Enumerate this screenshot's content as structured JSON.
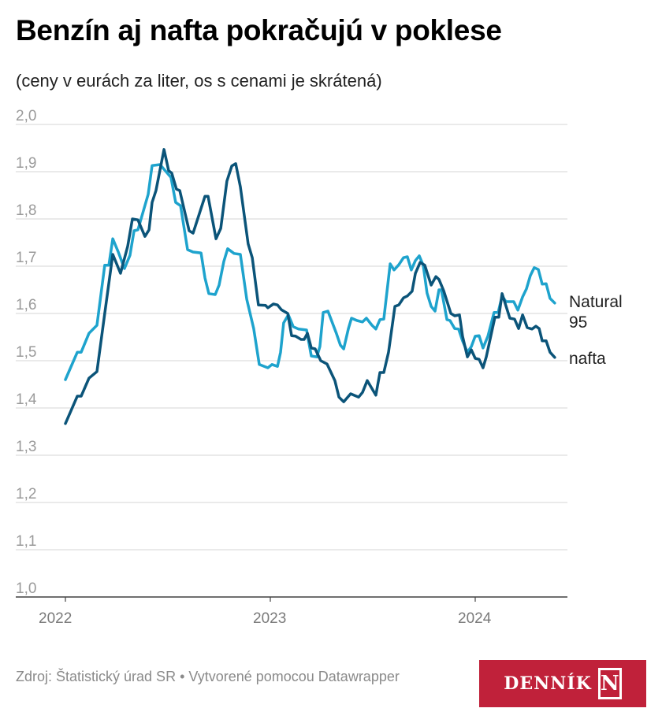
{
  "title": "Benzín aj nafta pokračujú v poklese",
  "subtitle": "(ceny v eurách za liter, os s cenami je skrátená)",
  "footer": {
    "source": "Zdroj: Štatistický úrad SR • Vytvorené pomocou Datawrapper",
    "logo_text": "DENNÍK",
    "logo_mark": "N"
  },
  "colors": {
    "natural95": "#1ea3cd",
    "nafta": "#0b5479",
    "logo": "#c0213a",
    "grid": "#e3e3e3"
  },
  "chart_data": {
    "type": "line",
    "xlabel": "",
    "ylabel": "",
    "ylim": [
      1.0,
      2.0
    ],
    "xlim": [
      2022.0,
      2024.39
    ],
    "y_ticks": [
      "1,0",
      "1,1",
      "1,2",
      "1,3",
      "1,4",
      "1,5",
      "1,6",
      "1,7",
      "1,8",
      "1,9",
      "2,0"
    ],
    "x_ticks": [
      "2022",
      "2023",
      "2024"
    ],
    "grid": true,
    "legend": "right",
    "series": [
      {
        "name": "Natural 95",
        "label_lines": [
          "Natural",
          "95"
        ],
        "color": "#1ea3cd",
        "x": [
          2022.0,
          2022.058,
          2022.077,
          2022.115,
          2022.154,
          2022.192,
          2022.212,
          2022.231,
          2022.258,
          2022.288,
          2022.315,
          2022.335,
          2022.354,
          2022.404,
          2022.423,
          2022.462,
          2022.515,
          2022.538,
          2022.562,
          2022.596,
          2022.623,
          2022.662,
          2022.681,
          2022.7,
          2022.731,
          2022.75,
          2022.773,
          2022.792,
          2022.823,
          2022.854,
          2022.885,
          2022.919,
          2022.946,
          2022.988,
          2023.008,
          2023.035,
          2023.05,
          2023.065,
          2023.088,
          2023.112,
          2023.138,
          2023.177,
          2023.2,
          2023.227,
          2023.242,
          2023.258,
          2023.281,
          2023.323,
          2023.342,
          2023.358,
          2023.381,
          2023.396,
          2023.423,
          2023.45,
          2023.469,
          2023.496,
          2023.515,
          2023.535,
          2023.554,
          2023.585,
          2023.604,
          2023.627,
          2023.65,
          2023.669,
          2023.688,
          2023.708,
          2023.727,
          2023.746,
          2023.765,
          2023.785,
          2023.804,
          2023.823,
          2023.835,
          2023.862,
          2023.877,
          2023.9,
          2023.919,
          2023.938,
          2023.962,
          2023.981,
          2024.0,
          2024.019,
          2024.038,
          2024.062,
          2024.092,
          2024.112,
          2024.131,
          2024.15,
          2024.188,
          2024.208,
          2024.231,
          2024.25,
          2024.269,
          2024.288,
          2024.308,
          2024.327,
          2024.346,
          2024.365,
          2024.388
        ],
        "y": [
          1.46,
          1.518,
          1.518,
          1.558,
          1.575,
          1.702,
          1.702,
          1.758,
          1.73,
          1.695,
          1.723,
          1.775,
          1.777,
          1.852,
          1.913,
          1.915,
          1.888,
          1.835,
          1.828,
          1.735,
          1.73,
          1.728,
          1.675,
          1.642,
          1.64,
          1.66,
          1.71,
          1.737,
          1.727,
          1.725,
          1.63,
          1.568,
          1.492,
          1.485,
          1.492,
          1.488,
          1.518,
          1.58,
          1.597,
          1.572,
          1.567,
          1.565,
          1.51,
          1.508,
          1.53,
          1.602,
          1.605,
          1.557,
          1.533,
          1.525,
          1.568,
          1.59,
          1.585,
          1.582,
          1.59,
          1.575,
          1.567,
          1.587,
          1.588,
          1.705,
          1.692,
          1.703,
          1.718,
          1.72,
          1.692,
          1.712,
          1.722,
          1.702,
          1.643,
          1.615,
          1.605,
          1.65,
          1.65,
          1.587,
          1.585,
          1.568,
          1.567,
          1.542,
          1.518,
          1.53,
          1.552,
          1.553,
          1.527,
          1.552,
          1.602,
          1.602,
          1.637,
          1.625,
          1.625,
          1.607,
          1.635,
          1.652,
          1.68,
          1.697,
          1.693,
          1.662,
          1.663,
          1.632,
          1.622
        ]
      },
      {
        "name": "nafta",
        "label_lines": [
          "nafta"
        ],
        "color": "#0b5479",
        "x": [
          2022.0,
          2022.058,
          2022.077,
          2022.115,
          2022.154,
          2022.192,
          2022.231,
          2022.269,
          2022.304,
          2022.327,
          2022.354,
          2022.388,
          2022.408,
          2022.423,
          2022.442,
          2022.481,
          2022.504,
          2022.519,
          2022.542,
          2022.558,
          2022.604,
          2022.623,
          2022.681,
          2022.696,
          2022.735,
          2022.758,
          2022.788,
          2022.812,
          2022.831,
          2022.854,
          2022.892,
          2022.912,
          2022.942,
          2022.977,
          2022.988,
          2023.015,
          2023.035,
          2023.054,
          2023.085,
          2023.104,
          2023.123,
          2023.15,
          2023.165,
          2023.181,
          2023.2,
          2023.219,
          2023.246,
          2023.277,
          2023.315,
          2023.335,
          2023.358,
          2023.392,
          2023.431,
          2023.45,
          2023.473,
          2023.515,
          2023.535,
          2023.554,
          2023.577,
          2023.608,
          2023.627,
          2023.65,
          2023.669,
          2023.692,
          2023.708,
          2023.731,
          2023.754,
          2023.785,
          2023.808,
          2023.823,
          2023.846,
          2023.881,
          2023.9,
          2023.923,
          2023.938,
          2023.962,
          2023.981,
          2024.0,
          2024.019,
          2024.038,
          2024.054,
          2024.096,
          2024.115,
          2024.131,
          2024.169,
          2024.192,
          2024.212,
          2024.231,
          2024.254,
          2024.277,
          2024.296,
          2024.312,
          2024.327,
          2024.346,
          2024.365,
          2024.388
        ],
        "y": [
          1.367,
          1.425,
          1.425,
          1.463,
          1.477,
          1.6,
          1.725,
          1.685,
          1.742,
          1.8,
          1.798,
          1.763,
          1.777,
          1.835,
          1.86,
          1.947,
          1.902,
          1.897,
          1.863,
          1.86,
          1.775,
          1.77,
          1.848,
          1.848,
          1.758,
          1.78,
          1.88,
          1.912,
          1.917,
          1.868,
          1.747,
          1.718,
          1.618,
          1.617,
          1.612,
          1.62,
          1.618,
          1.608,
          1.6,
          1.553,
          1.552,
          1.545,
          1.545,
          1.558,
          1.527,
          1.525,
          1.5,
          1.493,
          1.458,
          1.423,
          1.413,
          1.43,
          1.423,
          1.433,
          1.458,
          1.427,
          1.475,
          1.475,
          1.518,
          1.615,
          1.618,
          1.633,
          1.637,
          1.647,
          1.685,
          1.708,
          1.702,
          1.66,
          1.678,
          1.672,
          1.648,
          1.6,
          1.595,
          1.597,
          1.552,
          1.508,
          1.523,
          1.505,
          1.503,
          1.485,
          1.508,
          1.592,
          1.592,
          1.642,
          1.59,
          1.588,
          1.568,
          1.597,
          1.57,
          1.567,
          1.573,
          1.568,
          1.542,
          1.542,
          1.518,
          1.507
        ]
      }
    ]
  }
}
